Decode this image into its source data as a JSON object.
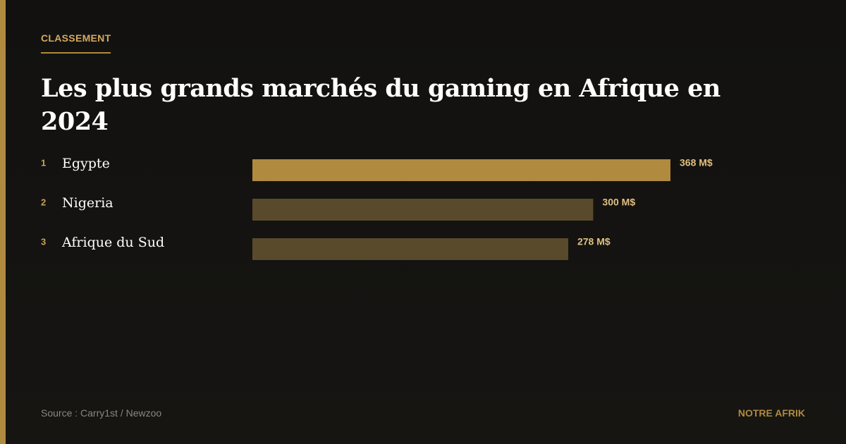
{
  "header": {
    "kicker": "CLASSEMENT"
  },
  "chart_data": {
    "type": "bar",
    "orientation": "horizontal",
    "title": "Les plus grands marchés du gaming en Afrique en 2024",
    "ranks": [
      1,
      2,
      3
    ],
    "categories": [
      "Egypte",
      "Nigeria",
      "Afrique du Sud"
    ],
    "values": [
      368,
      300,
      278
    ],
    "value_labels": [
      "368 M$",
      "300 M$",
      "278 M$"
    ],
    "colors": [
      "#b08a3e",
      "#5a4a2c",
      "#5a4a2c"
    ]
  },
  "footer": {
    "source": "Source : Carry1st / Newzoo",
    "brand": "NOTRE AFRIK"
  }
}
